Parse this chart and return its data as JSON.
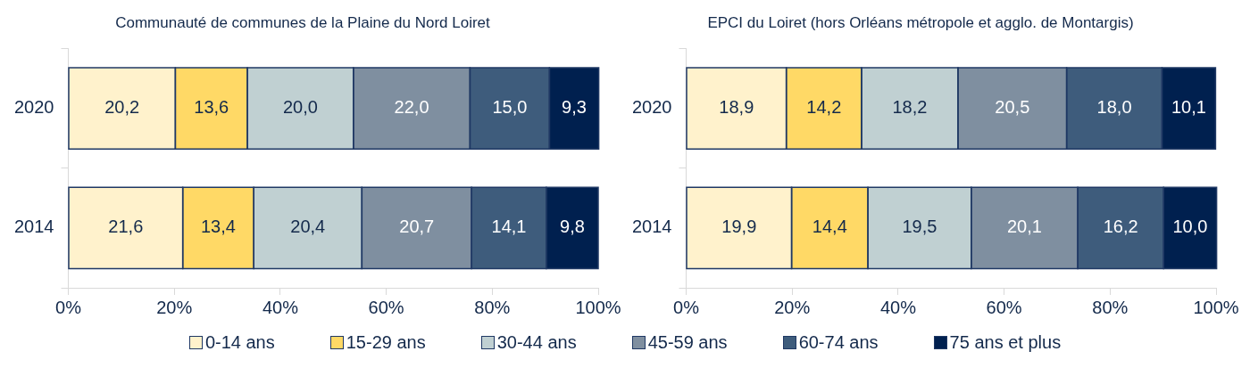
{
  "chart_data": [
    {
      "type": "bar",
      "orientation": "horizontal",
      "stacked": true,
      "legend": "bottom",
      "grid": false,
      "title": "Communauté de communes de la Plaine du Nord Loiret",
      "categories": [
        "2020",
        "2014"
      ],
      "xlim": [
        0,
        100
      ],
      "xticks": [
        {
          "value": 0,
          "label": "0%"
        },
        {
          "value": 20,
          "label": "20%"
        },
        {
          "value": 40,
          "label": "40%"
        },
        {
          "value": 60,
          "label": "60%"
        },
        {
          "value": 80,
          "label": "80%"
        },
        {
          "value": 100,
          "label": "100%"
        }
      ],
      "series": [
        {
          "name": "0-14 ans",
          "color": "#fff2cc",
          "values": [
            20.2,
            21.6
          ],
          "value_labels": [
            "20,2",
            "21,6"
          ]
        },
        {
          "name": "15-29 ans",
          "color": "#ffd966",
          "values": [
            13.6,
            13.4
          ],
          "value_labels": [
            "13,6",
            "13,4"
          ]
        },
        {
          "name": "30-44 ans",
          "color": "#c0d0d2",
          "values": [
            20.0,
            20.4
          ],
          "value_labels": [
            "20,0",
            "20,4"
          ]
        },
        {
          "name": "45-59 ans",
          "color": "#7f8fa0",
          "values": [
            22.0,
            20.7
          ],
          "value_labels": [
            "22,0",
            "20,7"
          ]
        },
        {
          "name": "60-74 ans",
          "color": "#3e5c7c",
          "values": [
            15.0,
            14.1
          ],
          "value_labels": [
            "15,0",
            "14,1"
          ]
        },
        {
          "name": "75 ans et plus",
          "color": "#00204f",
          "values": [
            9.3,
            9.8
          ],
          "value_labels": [
            "9,3",
            "9,8"
          ]
        }
      ]
    },
    {
      "type": "bar",
      "orientation": "horizontal",
      "stacked": true,
      "grid": false,
      "title": "EPCI du Loiret (hors Orléans métropole et agglo. de Montargis)",
      "categories": [
        "2020",
        "2014"
      ],
      "xlim": [
        0,
        100
      ],
      "xticks": [
        {
          "value": 0,
          "label": "0%"
        },
        {
          "value": 20,
          "label": "20%"
        },
        {
          "value": 40,
          "label": "40%"
        },
        {
          "value": 60,
          "label": "60%"
        },
        {
          "value": 80,
          "label": "80%"
        },
        {
          "value": 100,
          "label": "100%"
        }
      ],
      "series": [
        {
          "color": "#fff2cc",
          "values": [
            18.9,
            19.9
          ],
          "value_labels": [
            "18,9",
            "19,9"
          ]
        },
        {
          "color": "#ffd966",
          "values": [
            14.2,
            14.4
          ],
          "value_labels": [
            "14,2",
            "14,4"
          ]
        },
        {
          "color": "#c0d0d2",
          "values": [
            18.2,
            19.5
          ],
          "value_labels": [
            "18,2",
            "19,5"
          ]
        },
        {
          "color": "#7f8fa0",
          "values": [
            20.5,
            20.1
          ],
          "value_labels": [
            "20,5",
            "20,1"
          ]
        },
        {
          "color": "#3e5c7c",
          "values": [
            18.0,
            16.2
          ],
          "value_labels": [
            "18,0",
            "16,2"
          ]
        },
        {
          "color": "#00204f",
          "values": [
            10.1,
            10.0
          ],
          "value_labels": [
            "10,1",
            "10,0"
          ]
        }
      ]
    }
  ]
}
